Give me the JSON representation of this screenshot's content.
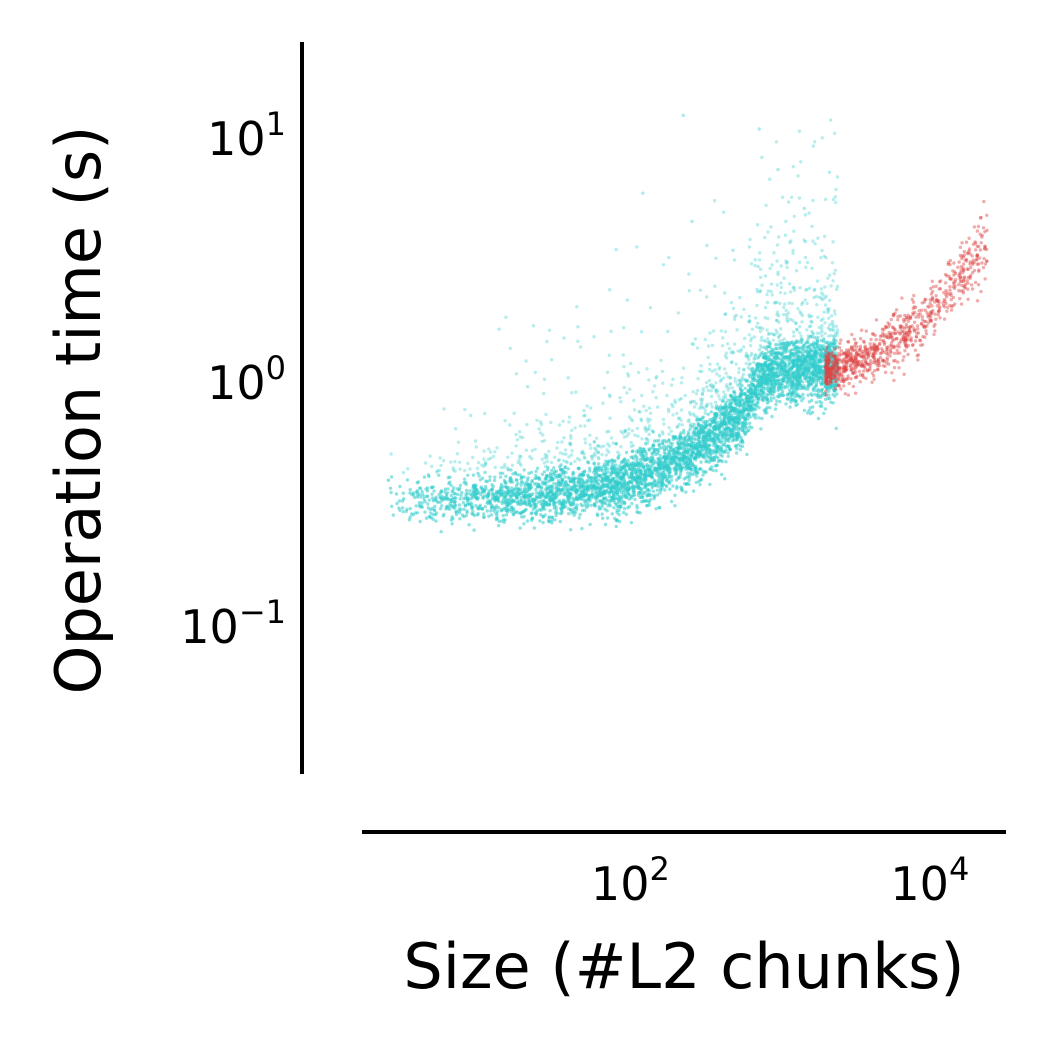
{
  "colors": {
    "series_small": "#33cccc",
    "series_large": "#dd4444",
    "axis": "#000000",
    "background": "#ffffff"
  },
  "chart_data": {
    "type": "scatter",
    "title": "",
    "xlabel": "Size (#L2 chunks)",
    "ylabel": "Operation time (s)",
    "xscale": "log",
    "yscale": "log",
    "xlim": [
      2,
      40000
    ],
    "ylim": [
      0.025,
      25
    ],
    "grid": false,
    "legend": "none",
    "x_ticks": [
      {
        "value": 100,
        "base": "10",
        "exp": "2"
      },
      {
        "value": 10000,
        "base": "10",
        "exp": "4"
      }
    ],
    "y_ticks": [
      {
        "value": 0.1,
        "base": "10",
        "exp": "−1"
      },
      {
        "value": 1,
        "base": "10",
        "exp": "0"
      },
      {
        "value": 10,
        "base": "10",
        "exp": "1"
      }
    ],
    "series": [
      {
        "color": "#33cccc",
        "point_count_approx": 10000,
        "x_range": [
          3,
          3000
        ],
        "y_range": [
          0.3,
          13
        ],
        "trend": [
          {
            "x": 5,
            "y": 0.32
          },
          {
            "x": 10,
            "y": 0.33
          },
          {
            "x": 30,
            "y": 0.34
          },
          {
            "x": 100,
            "y": 0.38
          },
          {
            "x": 300,
            "y": 0.5
          },
          {
            "x": 700,
            "y": 0.75
          },
          {
            "x": 1000,
            "y": 1.1
          },
          {
            "x": 3000,
            "y": 1.15
          }
        ]
      },
      {
        "color": "#dd4444",
        "point_count_approx": 800,
        "x_range": [
          2500,
          30000
        ],
        "y_range": [
          1.0,
          5
        ],
        "trend": [
          {
            "x": 3000,
            "y": 1.15
          },
          {
            "x": 5000,
            "y": 1.3
          },
          {
            "x": 10000,
            "y": 1.7
          },
          {
            "x": 20000,
            "y": 2.8
          },
          {
            "x": 30000,
            "y": 3.8
          }
        ]
      }
    ]
  }
}
